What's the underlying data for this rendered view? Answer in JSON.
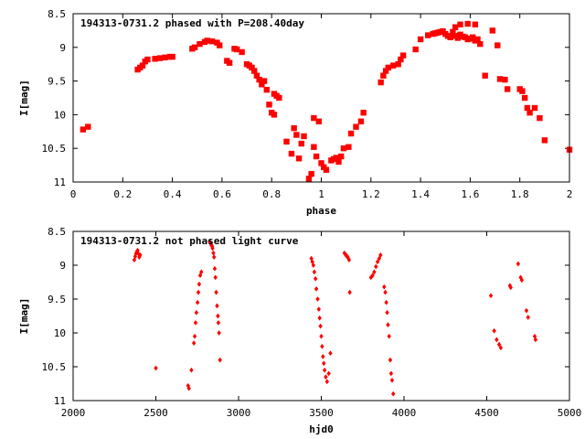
{
  "chart_data": [
    {
      "type": "scatter",
      "title": "194313-0731.2 phased with P=208.40day",
      "xlabel": "phase",
      "ylabel": "I[mag]",
      "xlim": [
        0,
        2
      ],
      "ylim": [
        8.5,
        11
      ],
      "y_inverted": true,
      "x_ticks": [
        "0",
        "0.2",
        "0.4",
        "0.6",
        "0.8",
        "1",
        "1.2",
        "1.4",
        "1.6",
        "1.8",
        "2"
      ],
      "y_ticks": [
        "8.5",
        "9",
        "9.5",
        "10",
        "10.5",
        "11"
      ],
      "marker": "filled-square",
      "color": "#ff0000",
      "series": [
        {
          "points": [
            [
              0.04,
              10.22
            ],
            [
              0.06,
              10.18
            ],
            [
              0.26,
              9.33
            ],
            [
              0.27,
              9.3
            ],
            [
              0.28,
              9.27
            ],
            [
              0.29,
              9.21
            ],
            [
              0.3,
              9.18
            ],
            [
              0.33,
              9.17
            ],
            [
              0.35,
              9.16
            ],
            [
              0.37,
              9.15
            ],
            [
              0.39,
              9.14
            ],
            [
              0.4,
              9.14
            ],
            [
              0.48,
              9.02
            ],
            [
              0.49,
              9.0
            ],
            [
              0.51,
              8.95
            ],
            [
              0.53,
              8.92
            ],
            [
              0.54,
              8.9
            ],
            [
              0.56,
              8.91
            ],
            [
              0.58,
              8.93
            ],
            [
              0.59,
              8.97
            ],
            [
              0.62,
              9.2
            ],
            [
              0.63,
              9.23
            ],
            [
              0.65,
              9.02
            ],
            [
              0.66,
              9.03
            ],
            [
              0.68,
              9.07
            ],
            [
              0.7,
              9.25
            ],
            [
              0.71,
              9.27
            ],
            [
              0.72,
              9.3
            ],
            [
              0.73,
              9.35
            ],
            [
              0.74,
              9.42
            ],
            [
              0.75,
              9.48
            ],
            [
              0.76,
              9.55
            ],
            [
              0.77,
              9.5
            ],
            [
              0.78,
              9.63
            ],
            [
              0.79,
              9.85
            ],
            [
              0.8,
              9.97
            ],
            [
              0.81,
              10.0
            ],
            [
              0.81,
              9.69
            ],
            [
              0.82,
              9.72
            ],
            [
              0.83,
              9.75
            ],
            [
              0.86,
              10.4
            ],
            [
              0.88,
              10.58
            ],
            [
              0.89,
              10.2
            ],
            [
              0.9,
              10.3
            ],
            [
              0.91,
              10.65
            ],
            [
              0.92,
              10.43
            ],
            [
              0.93,
              10.32
            ],
            [
              0.95,
              10.95
            ],
            [
              0.96,
              10.88
            ],
            [
              0.97,
              10.05
            ],
            [
              0.97,
              10.48
            ],
            [
              0.98,
              10.62
            ],
            [
              0.99,
              10.1
            ],
            [
              1.0,
              10.72
            ],
            [
              1.01,
              10.78
            ],
            [
              1.02,
              10.82
            ],
            [
              1.04,
              10.68
            ],
            [
              1.05,
              10.66
            ],
            [
              1.06,
              10.64
            ],
            [
              1.07,
              10.7
            ],
            [
              1.08,
              10.62
            ],
            [
              1.09,
              10.5
            ],
            [
              1.11,
              10.48
            ],
            [
              1.12,
              10.28
            ],
            [
              1.14,
              10.18
            ],
            [
              1.16,
              10.1
            ],
            [
              1.17,
              9.97
            ],
            [
              1.24,
              9.52
            ],
            [
              1.25,
              9.42
            ],
            [
              1.26,
              9.35
            ],
            [
              1.27,
              9.3
            ],
            [
              1.29,
              9.27
            ],
            [
              1.31,
              9.25
            ],
            [
              1.32,
              9.18
            ],
            [
              1.33,
              9.12
            ],
            [
              1.38,
              9.03
            ],
            [
              1.4,
              8.88
            ],
            [
              1.43,
              8.82
            ],
            [
              1.45,
              8.8
            ],
            [
              1.46,
              8.79
            ],
            [
              1.47,
              8.78
            ],
            [
              1.48,
              8.77
            ],
            [
              1.49,
              8.76
            ],
            [
              1.5,
              8.8
            ],
            [
              1.51,
              8.83
            ],
            [
              1.52,
              8.85
            ],
            [
              1.53,
              8.77
            ],
            [
              1.54,
              8.83
            ],
            [
              1.55,
              8.86
            ],
            [
              1.56,
              8.81
            ],
            [
              1.57,
              8.84
            ],
            [
              1.58,
              8.85
            ],
            [
              1.59,
              8.88
            ],
            [
              1.6,
              8.87
            ],
            [
              1.61,
              8.85
            ],
            [
              1.62,
              8.9
            ],
            [
              1.63,
              8.88
            ],
            [
              1.64,
              8.95
            ],
            [
              1.54,
              8.7
            ],
            [
              1.56,
              8.66
            ],
            [
              1.59,
              8.65
            ],
            [
              1.62,
              8.66
            ],
            [
              1.66,
              9.42
            ],
            [
              1.69,
              8.75
            ],
            [
              1.71,
              8.97
            ],
            [
              1.72,
              9.47
            ],
            [
              1.74,
              9.48
            ],
            [
              1.75,
              9.62
            ],
            [
              1.8,
              9.62
            ],
            [
              1.81,
              9.65
            ],
            [
              1.82,
              9.75
            ],
            [
              1.83,
              9.9
            ],
            [
              1.84,
              9.97
            ],
            [
              1.86,
              9.9
            ],
            [
              1.88,
              10.05
            ],
            [
              1.9,
              10.38
            ],
            [
              2.0,
              10.52
            ]
          ]
        }
      ]
    },
    {
      "type": "scatter",
      "title": "194313-0731.2 not phased light curve",
      "xlabel": "hjd0",
      "ylabel": "I[mag]",
      "xlim": [
        2000,
        5000
      ],
      "ylim": [
        8.5,
        11
      ],
      "y_inverted": true,
      "x_ticks": [
        "2000",
        "2500",
        "3000",
        "3500",
        "4000",
        "4500",
        "5000"
      ],
      "y_ticks": [
        "8.5",
        "9",
        "9.5",
        "10",
        "10.5",
        "11"
      ],
      "marker": "small-diamond",
      "color": "#ff0000",
      "series": [
        {
          "points": [
            [
              2370,
              8.92
            ],
            [
              2375,
              8.87
            ],
            [
              2380,
              8.83
            ],
            [
              2385,
              8.8
            ],
            [
              2390,
              8.78
            ],
            [
              2395,
              8.83
            ],
            [
              2400,
              8.88
            ],
            [
              2405,
              8.85
            ],
            [
              2500,
              10.52
            ],
            [
              2695,
              10.78
            ],
            [
              2700,
              10.82
            ],
            [
              2715,
              10.55
            ],
            [
              2730,
              10.15
            ],
            [
              2735,
              10.05
            ],
            [
              2740,
              9.85
            ],
            [
              2745,
              9.7
            ],
            [
              2752,
              9.55
            ],
            [
              2757,
              9.4
            ],
            [
              2762,
              9.28
            ],
            [
              2768,
              9.15
            ],
            [
              2775,
              9.1
            ],
            [
              2825,
              8.65
            ],
            [
              2830,
              8.67
            ],
            [
              2835,
              8.7
            ],
            [
              2840,
              8.72
            ],
            [
              2843,
              8.75
            ],
            [
              2848,
              8.82
            ],
            [
              2852,
              8.88
            ],
            [
              2856,
              9.05
            ],
            [
              2860,
              9.18
            ],
            [
              2865,
              9.4
            ],
            [
              2870,
              9.6
            ],
            [
              2875,
              9.75
            ],
            [
              2878,
              9.85
            ],
            [
              2882,
              10.0
            ],
            [
              2888,
              10.4
            ],
            [
              3440,
              8.9
            ],
            [
              3446,
              8.95
            ],
            [
              3452,
              9.0
            ],
            [
              3458,
              9.1
            ],
            [
              3465,
              9.2
            ],
            [
              3470,
              9.35
            ],
            [
              3478,
              9.5
            ],
            [
              3485,
              9.65
            ],
            [
              3490,
              9.78
            ],
            [
              3495,
              9.9
            ],
            [
              3500,
              10.05
            ],
            [
              3505,
              10.2
            ],
            [
              3510,
              10.35
            ],
            [
              3515,
              10.45
            ],
            [
              3520,
              10.55
            ],
            [
              3527,
              10.65
            ],
            [
              3535,
              10.72
            ],
            [
              3545,
              10.6
            ],
            [
              3555,
              10.3
            ],
            [
              3640,
              8.82
            ],
            [
              3645,
              8.84
            ],
            [
              3650,
              8.85
            ],
            [
              3655,
              8.87
            ],
            [
              3660,
              8.88
            ],
            [
              3668,
              8.92
            ],
            [
              3672,
              9.4
            ],
            [
              3800,
              9.18
            ],
            [
              3810,
              9.15
            ],
            [
              3820,
              9.1
            ],
            [
              3830,
              9.02
            ],
            [
              3840,
              8.95
            ],
            [
              3850,
              8.9
            ],
            [
              3858,
              8.85
            ],
            [
              3880,
              9.32
            ],
            [
              3887,
              9.4
            ],
            [
              3893,
              9.55
            ],
            [
              3898,
              9.7
            ],
            [
              3903,
              9.88
            ],
            [
              3910,
              10.05
            ],
            [
              3917,
              10.4
            ],
            [
              3922,
              10.6
            ],
            [
              3928,
              10.7
            ],
            [
              3935,
              10.9
            ],
            [
              4525,
              9.45
            ],
            [
              4545,
              9.97
            ],
            [
              4560,
              10.1
            ],
            [
              4575,
              10.17
            ],
            [
              4585,
              10.22
            ],
            [
              4640,
              9.3
            ],
            [
              4645,
              9.33
            ],
            [
              4690,
              8.98
            ],
            [
              4705,
              9.18
            ],
            [
              4712,
              9.22
            ],
            [
              4740,
              9.67
            ],
            [
              4750,
              9.77
            ],
            [
              4790,
              10.05
            ],
            [
              4795,
              10.1
            ]
          ]
        }
      ]
    }
  ]
}
